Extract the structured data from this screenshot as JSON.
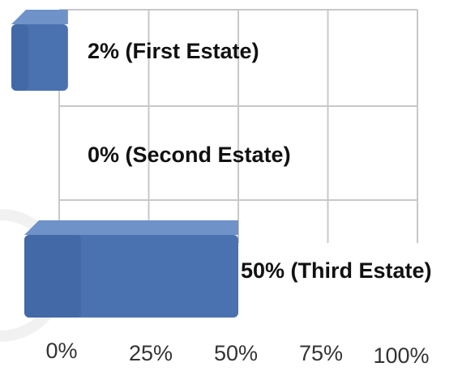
{
  "chart_data": {
    "type": "bar",
    "orientation": "horizontal",
    "categories": [
      "First Estate",
      "Second Estate",
      "Third Estate"
    ],
    "values": [
      2,
      0,
      50
    ],
    "data_labels": [
      "2% (First Estate)",
      "0% (Second Estate)",
      "50% (Third Estate)"
    ],
    "x_ticks": [
      "0%",
      "25%",
      "50%",
      "75%",
      "100%"
    ],
    "xlim": [
      0,
      100
    ],
    "grid": true,
    "legend": "none",
    "bar_color": "#4a72b0",
    "bar_top_color": "#6f92c8",
    "bar_dark_color": "#2f4f86"
  }
}
